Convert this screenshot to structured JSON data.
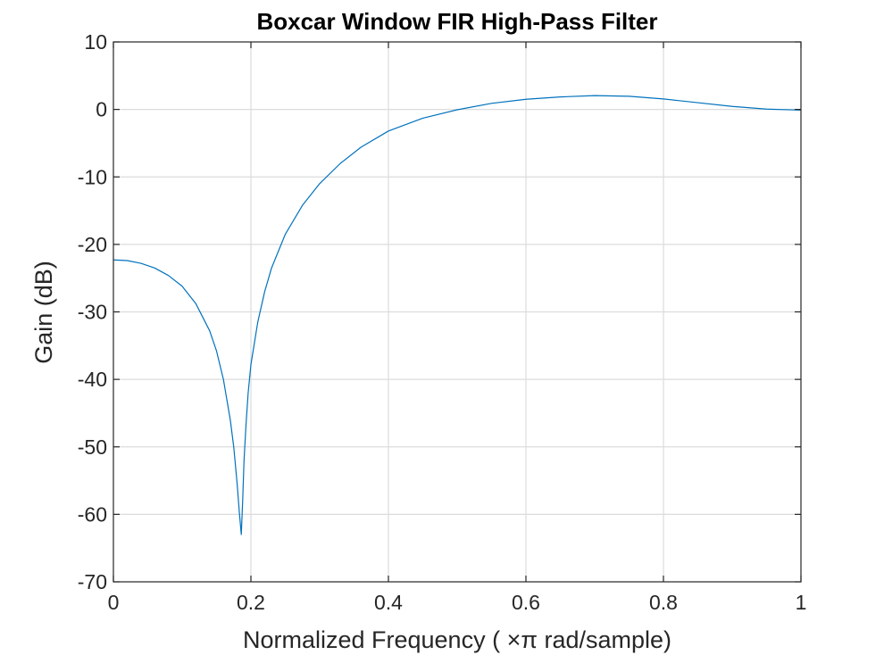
{
  "chart_data": {
    "type": "line",
    "title": "Boxcar Window FIR High-Pass Filter",
    "xlabel": "Normalized  Frequency  ( ×π  rad/sample)",
    "ylabel": "Gain (dB)",
    "xlim": [
      0,
      1
    ],
    "ylim": [
      -70,
      10
    ],
    "xticks": [
      0,
      0.2,
      0.4,
      0.6,
      0.8,
      1
    ],
    "xtick_labels": [
      "0",
      "0.2",
      "0.4",
      "0.6",
      "0.8",
      "1"
    ],
    "yticks": [
      10,
      0,
      -10,
      -20,
      -30,
      -40,
      -50,
      -60,
      -70
    ],
    "ytick_labels": [
      "10",
      "0",
      "-10",
      "-20",
      "-30",
      "-40",
      "-50",
      "-60",
      "-70"
    ],
    "grid": true,
    "series": [
      {
        "color": "#0072BD",
        "x": [
          0,
          0.02,
          0.04,
          0.06,
          0.08,
          0.1,
          0.12,
          0.14,
          0.15,
          0.16,
          0.17,
          0.175,
          0.18,
          0.183,
          0.186,
          0.188,
          0.19,
          0.193,
          0.196,
          0.2,
          0.21,
          0.22,
          0.23,
          0.25,
          0.275,
          0.3,
          0.33,
          0.36,
          0.4,
          0.45,
          0.5,
          0.55,
          0.6,
          0.65,
          0.7,
          0.75,
          0.8,
          0.85,
          0.9,
          0.95,
          1.0
        ],
        "y": [
          -22.3,
          -22.4,
          -22.8,
          -23.5,
          -24.6,
          -26.2,
          -28.8,
          -32.8,
          -35.8,
          -40.0,
          -46.0,
          -50.0,
          -55.5,
          -59.5,
          -63.0,
          -58.0,
          -52.0,
          -46.5,
          -42.0,
          -37.8,
          -31.5,
          -27.0,
          -23.5,
          -18.5,
          -14.2,
          -11.0,
          -8.0,
          -5.6,
          -3.2,
          -1.3,
          -0.05,
          0.9,
          1.5,
          1.85,
          2.05,
          1.95,
          1.55,
          1.0,
          0.45,
          0.05,
          -0.1
        ]
      }
    ]
  }
}
